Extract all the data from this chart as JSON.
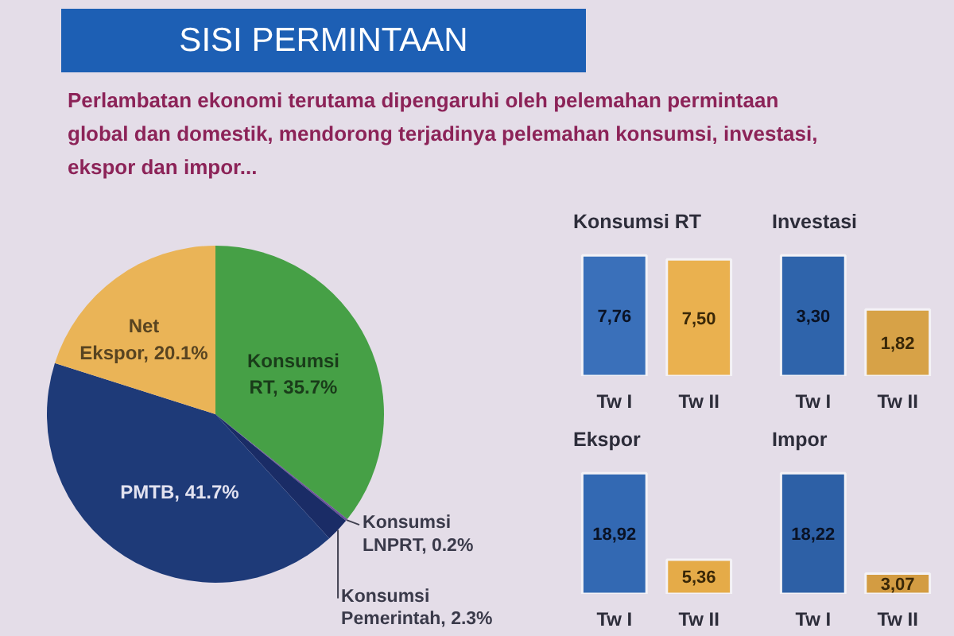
{
  "chart_data": [
    {
      "type": "pie",
      "title": "SISI PERMINTAAN",
      "subtitle": "Perlambatan ekonomi terutama dipengaruhi oleh pelemahan permintaan global dan domestik, mendorong terjadinya pelemahan konsumsi, investasi, ekspor dan impor...",
      "categories": [
        "Konsumsi RT",
        "Konsumsi LNPRT",
        "Konsumsi Pemerintah",
        "PMTB",
        "Net Ekspor"
      ],
      "values": [
        35.7,
        0.2,
        2.3,
        41.7,
        20.1
      ],
      "value_labels": [
        "35.7%",
        "0.2%",
        "2.3%",
        "41.7%",
        "20.1%"
      ],
      "colors": [
        "#46a046",
        "#6a4f9a",
        "#1a2c66",
        "#1e3a78",
        "#eab457"
      ]
    },
    {
      "type": "bar",
      "title": "Konsumsi RT",
      "categories": [
        "Tw I",
        "Tw II"
      ],
      "values": [
        7.76,
        7.5
      ],
      "value_labels": [
        "7,76",
        "7,50"
      ],
      "colors": [
        "#3a70ba",
        "#eab14f"
      ]
    },
    {
      "type": "bar",
      "title": "Investasi",
      "categories": [
        "Tw I",
        "Tw II"
      ],
      "values": [
        3.3,
        1.82
      ],
      "value_labels": [
        "3,30",
        "1,82"
      ],
      "colors": [
        "#2f64ab",
        "#d7a247"
      ]
    },
    {
      "type": "bar",
      "title": "Ekspor",
      "categories": [
        "Tw I",
        "Tw II"
      ],
      "values": [
        18.92,
        5.36
      ],
      "value_labels": [
        "18,92",
        "5,36"
      ],
      "colors": [
        "#3369b3",
        "#e5ab48"
      ]
    },
    {
      "type": "bar",
      "title": "Impor",
      "categories": [
        "Tw I",
        "Tw II"
      ],
      "values": [
        18.22,
        3.07
      ],
      "value_labels": [
        "18,22",
        "3,07"
      ],
      "colors": [
        "#2d60a6",
        "#d39c42"
      ]
    }
  ]
}
